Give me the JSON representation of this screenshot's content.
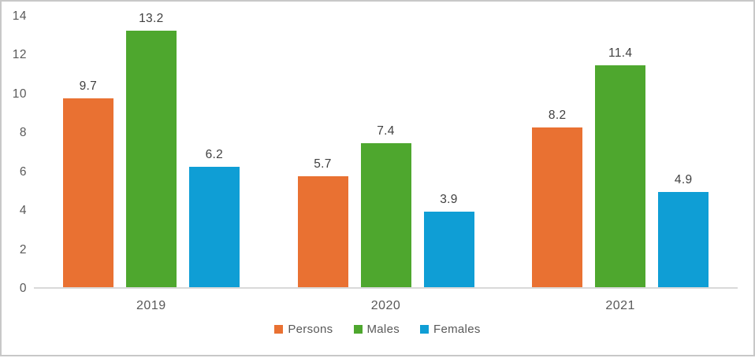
{
  "chart_data": {
    "type": "bar",
    "title": "",
    "xlabel": "",
    "ylabel": "",
    "categories": [
      "2019",
      "2020",
      "2021"
    ],
    "series": [
      {
        "name": "Persons",
        "color": "#E97132",
        "values": [
          9.7,
          5.7,
          8.2
        ]
      },
      {
        "name": "Males",
        "color": "#4EA72E",
        "values": [
          13.2,
          7.4,
          11.4
        ]
      },
      {
        "name": "Females",
        "color": "#0F9ED5",
        "values": [
          6.2,
          3.9,
          4.9
        ]
      }
    ],
    "ylim": [
      0,
      14
    ],
    "yticks": [
      0,
      2,
      4,
      6,
      8,
      10,
      12,
      14
    ],
    "grid": false,
    "legend_position": "bottom",
    "data_labels_shown": true
  },
  "colors": {
    "frame_border": "#C8C8C8",
    "axis_line": "#D9D9D9",
    "tick_label": "#595959",
    "value_label": "#404040",
    "legend_label": "#595959",
    "background": "#FFFFFF"
  }
}
